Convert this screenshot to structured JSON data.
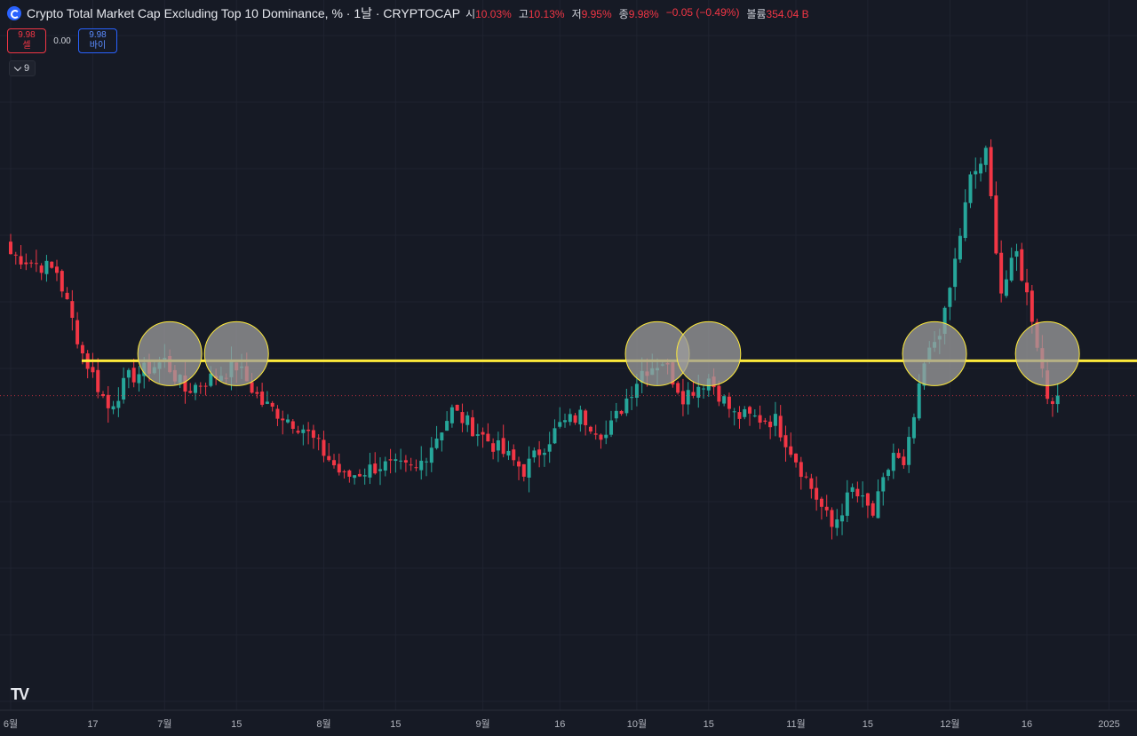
{
  "header": {
    "title": "Crypto Total Market Cap Excluding Top 10 Dominance, % · 1날 · CRYPTOCAP",
    "ohlc": [
      {
        "k": "시",
        "v": "10.03%"
      },
      {
        "k": "고",
        "v": "10.13%"
      },
      {
        "k": "저",
        "v": "9.95%"
      },
      {
        "k": "종",
        "v": "9.98%"
      },
      {
        "k": "",
        "v": "−0.05 (−0.49%)"
      },
      {
        "k": "볼륨",
        "v": "354.04 B"
      }
    ]
  },
  "trade": {
    "sell_price": "9.98",
    "sell_label": "셀",
    "spread": "0.00",
    "buy_price": "9.98",
    "buy_label": "바이"
  },
  "indicators_toggle": "9",
  "logo": "TV",
  "colors": {
    "background": "#161a25",
    "up": "#26a69a",
    "down": "#f23645",
    "support_line": "#ffeb3b",
    "circle_fill": "#9e9e9e",
    "circle_stroke": "#ffeb3b"
  },
  "chart_data": {
    "type": "candlestick",
    "title": "Crypto Total Market Cap Excluding Top 10 Dominance, %",
    "timeframe": "1D",
    "ylabel": "%",
    "ylim": [
      9.25,
      11.0
    ],
    "x_tick_labels": [
      "6월",
      "17",
      "7월",
      "15",
      "8월",
      "15",
      "9월",
      "16",
      "10월",
      "15",
      "11월",
      "15",
      "12월",
      "16",
      "2025"
    ],
    "close_anchors": [
      {
        "date": "2024-06-01",
        "close": 10.55
      },
      {
        "date": "2024-06-10",
        "close": 10.48
      },
      {
        "date": "2024-06-15",
        "close": 10.15
      },
      {
        "date": "2024-06-20",
        "close": 9.93
      },
      {
        "date": "2024-06-24",
        "close": 10.05
      },
      {
        "date": "2024-07-01",
        "close": 10.12
      },
      {
        "date": "2024-07-05",
        "close": 10.0
      },
      {
        "date": "2024-07-15",
        "close": 10.1
      },
      {
        "date": "2024-07-20",
        "close": 9.95
      },
      {
        "date": "2024-07-28",
        "close": 9.85
      },
      {
        "date": "2024-08-05",
        "close": 9.65
      },
      {
        "date": "2024-08-12",
        "close": 9.7
      },
      {
        "date": "2024-08-19",
        "close": 9.68
      },
      {
        "date": "2024-08-26",
        "close": 9.92
      },
      {
        "date": "2024-09-02",
        "close": 9.8
      },
      {
        "date": "2024-09-09",
        "close": 9.68
      },
      {
        "date": "2024-09-16",
        "close": 9.86
      },
      {
        "date": "2024-09-20",
        "close": 9.9
      },
      {
        "date": "2024-09-25",
        "close": 9.82
      },
      {
        "date": "2024-10-02",
        "close": 10.08
      },
      {
        "date": "2024-10-06",
        "close": 10.12
      },
      {
        "date": "2024-10-10",
        "close": 9.98
      },
      {
        "date": "2024-10-15",
        "close": 10.05
      },
      {
        "date": "2024-10-20",
        "close": 9.9
      },
      {
        "date": "2024-10-28",
        "close": 9.88
      },
      {
        "date": "2024-11-05",
        "close": 9.57
      },
      {
        "date": "2024-11-08",
        "close": 9.45
      },
      {
        "date": "2024-11-12",
        "close": 9.6
      },
      {
        "date": "2024-11-16",
        "close": 9.5
      },
      {
        "date": "2024-11-20",
        "close": 9.75
      },
      {
        "date": "2024-11-22",
        "close": 9.68
      },
      {
        "date": "2024-11-26",
        "close": 10.1
      },
      {
        "date": "2024-11-30",
        "close": 10.3
      },
      {
        "date": "2024-12-05",
        "close": 10.85
      },
      {
        "date": "2024-12-08",
        "close": 10.95
      },
      {
        "date": "2024-12-11",
        "close": 10.4
      },
      {
        "date": "2024-12-14",
        "close": 10.55
      },
      {
        "date": "2024-12-17",
        "close": 10.3
      },
      {
        "date": "2024-12-20",
        "close": 9.98
      },
      {
        "date": "2024-12-22",
        "close": 9.98
      }
    ],
    "support_level": 10.12,
    "last_close": 9.98,
    "highlighted_touches": [
      "2024-07-02",
      "2024-07-15",
      "2024-10-05",
      "2024-10-15",
      "2024-11-28",
      "2024-12-20"
    ]
  }
}
